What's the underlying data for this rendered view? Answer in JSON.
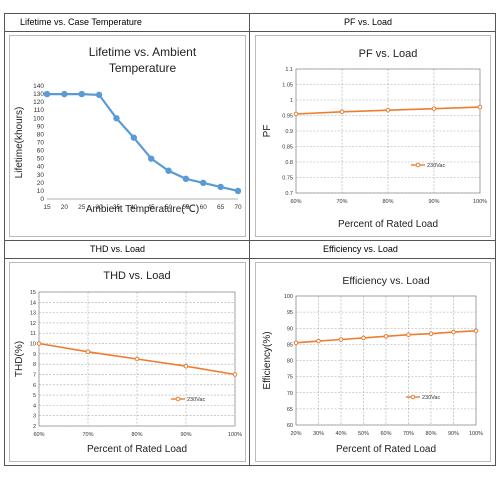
{
  "panels": [
    {
      "header": "Lifetime vs. Case Temperature",
      "chart": {
        "type": "line",
        "title": "Lifetime vs. Ambient Temperature",
        "title_lines": [
          "Lifetime vs. Ambient",
          "Temperature"
        ],
        "xlabel": "Ambient Temperature(℃)",
        "ylabel": "Lifetime(khours)",
        "x_ticks": [
          "15",
          "20",
          "25",
          "30",
          "35",
          "40",
          "45",
          "50",
          "55",
          "60",
          "65",
          "70"
        ],
        "y_ticks": [
          "0",
          "10",
          "20",
          "30",
          "40",
          "50",
          "60",
          "70",
          "80",
          "90",
          "100",
          "110",
          "120",
          "130",
          "140"
        ],
        "xlim": [
          15,
          70
        ],
        "ylim": [
          0,
          140
        ],
        "series": [
          {
            "x": [
              15,
              20,
              25,
              30,
              35,
              40,
              45,
              50,
              55,
              60,
              65,
              70
            ],
            "y": [
              130,
              130,
              130,
              129,
              100,
              76,
              50,
              35,
              25,
              20,
              15,
              10
            ],
            "color": "#5b9bd5"
          }
        ],
        "grid": false
      }
    },
    {
      "header": "PF vs. Load",
      "chart": {
        "type": "line",
        "title": "PF vs. Load",
        "xlabel": "Percent of Rated Load",
        "ylabel": "PF",
        "x_ticks": [
          "60%",
          "70%",
          "80%",
          "90%",
          "100%"
        ],
        "y_ticks": [
          "0.7",
          "0.75",
          "0.8",
          "0.85",
          "0.9",
          "0.95",
          "1",
          "1.05",
          "1.1"
        ],
        "xlim": [
          60,
          100
        ],
        "ylim": [
          0.7,
          1.1
        ],
        "series": [
          {
            "name": "230Vac",
            "x": [
              60,
              70,
              80,
              90,
              100
            ],
            "y": [
              0.955,
              0.962,
              0.967,
              0.972,
              0.977
            ],
            "color": "#ed7d31"
          }
        ],
        "legend": "right",
        "grid": true
      }
    },
    {
      "header": "THD vs. Load",
      "chart": {
        "type": "line",
        "title": "THD vs. Load",
        "xlabel": "Percent of Rated Load",
        "ylabel": "THD(%)",
        "x_ticks": [
          "60%",
          "70%",
          "80%",
          "90%",
          "100%"
        ],
        "y_ticks": [
          "2",
          "3",
          "4",
          "5",
          "6",
          "7",
          "8",
          "9",
          "10",
          "11",
          "12",
          "13",
          "14",
          "15"
        ],
        "xlim": [
          60,
          100
        ],
        "ylim": [
          2,
          15
        ],
        "series": [
          {
            "name": "230Vac",
            "x": [
              60,
              70,
              80,
              90,
              100
            ],
            "y": [
              10,
              9.2,
              8.5,
              7.8,
              7.0
            ],
            "color": "#ed7d31"
          }
        ],
        "legend": "right",
        "grid": true
      }
    },
    {
      "header": "Efficiency vs. Load",
      "chart": {
        "type": "line",
        "title": "Efficiency vs. Load",
        "xlabel": "Percent of Rated Load",
        "ylabel": "Efficiency(%)",
        "x_ticks": [
          "20%",
          "30%",
          "40%",
          "50%",
          "60%",
          "70%",
          "80%",
          "90%",
          "100%"
        ],
        "y_ticks": [
          "60",
          "65",
          "70",
          "75",
          "80",
          "85",
          "90",
          "95",
          "100"
        ],
        "xlim": [
          20,
          100
        ],
        "ylim": [
          60,
          100
        ],
        "series": [
          {
            "name": "230Vac",
            "x": [
              20,
              30,
              40,
              50,
              60,
              70,
              80,
              90,
              100
            ],
            "y": [
              85.5,
              86,
              86.5,
              87,
              87.5,
              88,
              88.3,
              88.8,
              89.2
            ],
            "color": "#ed7d31"
          }
        ],
        "legend": "right",
        "grid": true
      }
    }
  ]
}
